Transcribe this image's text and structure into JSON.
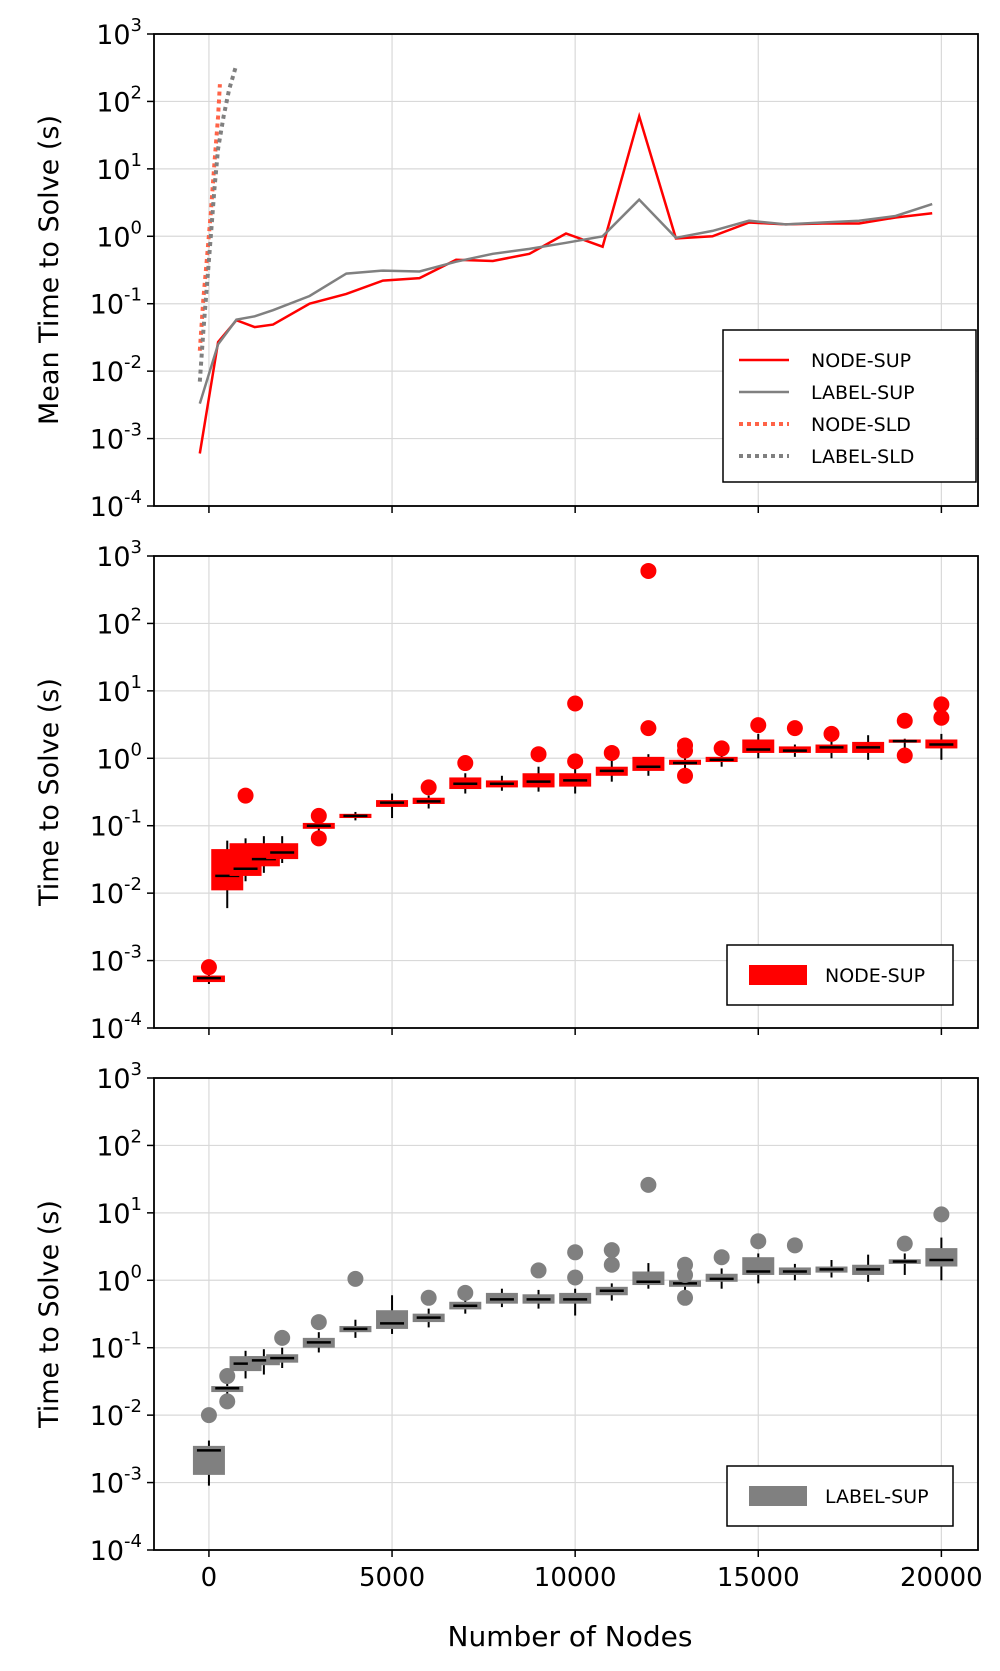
{
  "figure": {
    "xlabel": "Number of Nodes"
  },
  "colors": {
    "node": "#ff0000",
    "label": "#808080",
    "node_sld": "#ff6347",
    "label_sld": "#808080",
    "median": "#000000",
    "grid": "#d9d9d9"
  },
  "chart_data": [
    {
      "type": "line",
      "ylabel": "Mean Time to Solve (s)",
      "yscale": "log",
      "ylim": [
        0.0001,
        1000
      ],
      "xlim": [
        -1500,
        21000
      ],
      "yticks": [
        {
          "base": "10",
          "exp": "-4",
          "value": 0.0001
        },
        {
          "base": "10",
          "exp": "-3",
          "value": 0.001
        },
        {
          "base": "10",
          "exp": "-2",
          "value": 0.01
        },
        {
          "base": "10",
          "exp": "-1",
          "value": 0.1
        },
        {
          "base": "10",
          "exp": "0",
          "value": 1
        },
        {
          "base": "10",
          "exp": "1",
          "value": 10
        },
        {
          "base": "10",
          "exp": "2",
          "value": 100
        },
        {
          "base": "10",
          "exp": "3",
          "value": 1000
        }
      ],
      "xticks": [
        0,
        5000,
        10000,
        15000,
        20000
      ],
      "legend": {
        "position": "lower right",
        "entries": [
          "NODE-SUP",
          "LABEL-SUP",
          "NODE-SLD",
          "LABEL-SLD"
        ]
      },
      "series": [
        {
          "name": "NODE-SUP",
          "style": "solid",
          "x": [
            -250,
            250,
            750,
            1250,
            1750,
            2750,
            3750,
            4750,
            5750,
            6750,
            7750,
            8750,
            9750,
            10750,
            11750,
            12750,
            13750,
            14750,
            15750,
            16750,
            17750,
            18750,
            19750
          ],
          "y": [
            0.0006,
            0.027,
            0.057,
            0.045,
            0.049,
            0.1,
            0.14,
            0.22,
            0.24,
            0.45,
            0.43,
            0.55,
            1.1,
            0.7,
            60,
            0.93,
            1.0,
            1.6,
            1.5,
            1.55,
            1.55,
            1.9,
            2.2
          ]
        },
        {
          "name": "LABEL-SUP",
          "style": "solid",
          "x": [
            -250,
            250,
            750,
            1250,
            1750,
            2750,
            3750,
            4750,
            5750,
            6750,
            7750,
            8750,
            9750,
            10750,
            11750,
            12750,
            13750,
            14750,
            15750,
            16750,
            17750,
            18750,
            19750
          ],
          "y": [
            0.0033,
            0.025,
            0.058,
            0.065,
            0.08,
            0.13,
            0.28,
            0.31,
            0.3,
            0.42,
            0.55,
            0.65,
            0.8,
            1.0,
            3.5,
            0.95,
            1.2,
            1.7,
            1.5,
            1.6,
            1.7,
            2.0,
            3.0
          ]
        },
        {
          "name": "NODE-SLD",
          "style": "dotted",
          "x": [
            -250,
            -150,
            -50,
            50,
            150,
            250,
            300
          ],
          "y": [
            0.02,
            0.12,
            0.5,
            2.2,
            12,
            60,
            180
          ]
        },
        {
          "name": "LABEL-SLD",
          "style": "dotted",
          "x": [
            -250,
            -150,
            -50,
            50,
            150,
            250,
            400,
            550,
            750
          ],
          "y": [
            0.007,
            0.04,
            0.2,
            1.0,
            5,
            20,
            60,
            150,
            350
          ]
        }
      ]
    },
    {
      "type": "box",
      "ylabel": "Time to Solve (s)",
      "yscale": "log",
      "ylim": [
        0.0001,
        1000
      ],
      "xlim": [
        -1500,
        21000
      ],
      "yticks": [
        {
          "base": "10",
          "exp": "-4",
          "value": 0.0001
        },
        {
          "base": "10",
          "exp": "-3",
          "value": 0.001
        },
        {
          "base": "10",
          "exp": "-2",
          "value": 0.01
        },
        {
          "base": "10",
          "exp": "-1",
          "value": 0.1
        },
        {
          "base": "10",
          "exp": "0",
          "value": 1
        },
        {
          "base": "10",
          "exp": "1",
          "value": 10
        },
        {
          "base": "10",
          "exp": "2",
          "value": 100
        },
        {
          "base": "10",
          "exp": "3",
          "value": 1000
        }
      ],
      "xticks": [
        0,
        5000,
        10000,
        15000,
        20000
      ],
      "legend": {
        "position": "lower right",
        "entries": [
          "NODE-SUP"
        ]
      },
      "series": [
        {
          "name": "NODE-SUP",
          "boxes": [
            {
              "x": 0,
              "min": 0.00045,
              "q1": 0.00048,
              "median": 0.00055,
              "q3": 0.0006,
              "max": 0.00062,
              "outliers": [
                0.0008
              ]
            },
            {
              "x": 500,
              "min": 0.006,
              "q1": 0.011,
              "median": 0.018,
              "q3": 0.045,
              "max": 0.06,
              "outliers": []
            },
            {
              "x": 1000,
              "min": 0.015,
              "q1": 0.018,
              "median": 0.023,
              "q3": 0.055,
              "max": 0.065,
              "outliers": [
                0.28
              ]
            },
            {
              "x": 1500,
              "min": 0.02,
              "q1": 0.025,
              "median": 0.032,
              "q3": 0.055,
              "max": 0.07,
              "outliers": []
            },
            {
              "x": 2000,
              "min": 0.028,
              "q1": 0.032,
              "median": 0.04,
              "q3": 0.055,
              "max": 0.07,
              "outliers": []
            },
            {
              "x": 3000,
              "min": 0.075,
              "q1": 0.09,
              "median": 0.1,
              "q3": 0.11,
              "max": 0.12,
              "outliers": [
                0.14,
                0.065
              ]
            },
            {
              "x": 4000,
              "min": 0.12,
              "q1": 0.13,
              "median": 0.14,
              "q3": 0.15,
              "max": 0.16,
              "outliers": []
            },
            {
              "x": 5000,
              "min": 0.13,
              "q1": 0.19,
              "median": 0.22,
              "q3": 0.24,
              "max": 0.3,
              "outliers": []
            },
            {
              "x": 6000,
              "min": 0.18,
              "q1": 0.21,
              "median": 0.23,
              "q3": 0.26,
              "max": 0.28,
              "outliers": [
                0.37
              ]
            },
            {
              "x": 7000,
              "min": 0.3,
              "q1": 0.35,
              "median": 0.42,
              "q3": 0.52,
              "max": 0.6,
              "outliers": [
                0.85
              ]
            },
            {
              "x": 8000,
              "min": 0.33,
              "q1": 0.37,
              "median": 0.42,
              "q3": 0.47,
              "max": 0.55,
              "outliers": []
            },
            {
              "x": 9000,
              "min": 0.32,
              "q1": 0.37,
              "median": 0.45,
              "q3": 0.6,
              "max": 0.75,
              "outliers": [
                1.15
              ]
            },
            {
              "x": 10000,
              "min": 0.3,
              "q1": 0.38,
              "median": 0.47,
              "q3": 0.6,
              "max": 0.7,
              "outliers": [
                6.5,
                0.9
              ]
            },
            {
              "x": 11000,
              "min": 0.45,
              "q1": 0.55,
              "median": 0.65,
              "q3": 0.75,
              "max": 0.95,
              "outliers": [
                1.2
              ]
            },
            {
              "x": 12000,
              "min": 0.55,
              "q1": 0.65,
              "median": 0.75,
              "q3": 1.05,
              "max": 1.15,
              "outliers": [
                600,
                2.8
              ]
            },
            {
              "x": 13000,
              "min": 0.65,
              "q1": 0.8,
              "median": 0.85,
              "q3": 0.95,
              "max": 1.1,
              "outliers": [
                1.55,
                1.3,
                0.55
              ]
            },
            {
              "x": 14000,
              "min": 0.75,
              "q1": 0.88,
              "median": 0.95,
              "q3": 1.05,
              "max": 1.2,
              "outliers": [
                1.4
              ]
            },
            {
              "x": 15000,
              "min": 1.0,
              "q1": 1.2,
              "median": 1.35,
              "q3": 1.9,
              "max": 2.3,
              "outliers": [
                3.1
              ]
            },
            {
              "x": 16000,
              "min": 1.05,
              "q1": 1.2,
              "median": 1.3,
              "q3": 1.5,
              "max": 1.6,
              "outliers": [
                2.8
              ]
            },
            {
              "x": 17000,
              "min": 1.0,
              "q1": 1.2,
              "median": 1.45,
              "q3": 1.6,
              "max": 1.9,
              "outliers": [
                2.3
              ]
            },
            {
              "x": 18000,
              "min": 0.95,
              "q1": 1.2,
              "median": 1.45,
              "q3": 1.75,
              "max": 2.2,
              "outliers": []
            },
            {
              "x": 19000,
              "min": 1.2,
              "q1": 1.7,
              "median": 1.8,
              "q3": 1.9,
              "max": 1.95,
              "outliers": [
                3.6,
                1.1
              ]
            },
            {
              "x": 20000,
              "min": 0.95,
              "q1": 1.4,
              "median": 1.6,
              "q3": 1.9,
              "max": 2.3,
              "outliers": [
                6.3,
                4.0
              ]
            }
          ]
        }
      ]
    },
    {
      "type": "box",
      "ylabel": "Time to Solve (s)",
      "yscale": "log",
      "ylim": [
        0.0001,
        1000
      ],
      "xlim": [
        -1500,
        21000
      ],
      "yticks": [
        {
          "base": "10",
          "exp": "-4",
          "value": 0.0001
        },
        {
          "base": "10",
          "exp": "-3",
          "value": 0.001
        },
        {
          "base": "10",
          "exp": "-2",
          "value": 0.01
        },
        {
          "base": "10",
          "exp": "-1",
          "value": 0.1
        },
        {
          "base": "10",
          "exp": "0",
          "value": 1
        },
        {
          "base": "10",
          "exp": "1",
          "value": 10
        },
        {
          "base": "10",
          "exp": "2",
          "value": 100
        },
        {
          "base": "10",
          "exp": "3",
          "value": 1000
        }
      ],
      "xticks": [
        0,
        5000,
        10000,
        15000,
        20000
      ],
      "legend": {
        "position": "lower right",
        "entries": [
          "LABEL-SUP"
        ]
      },
      "series": [
        {
          "name": "LABEL-SUP",
          "boxes": [
            {
              "x": 0,
              "min": 0.0009,
              "q1": 0.0013,
              "median": 0.003,
              "q3": 0.0035,
              "max": 0.0042,
              "outliers": [
                0.01
              ]
            },
            {
              "x": 500,
              "min": 0.02,
              "q1": 0.022,
              "median": 0.025,
              "q3": 0.027,
              "max": 0.03,
              "outliers": [
                0.038,
                0.016
              ]
            },
            {
              "x": 1000,
              "min": 0.035,
              "q1": 0.045,
              "median": 0.058,
              "q3": 0.075,
              "max": 0.09,
              "outliers": []
            },
            {
              "x": 1500,
              "min": 0.04,
              "q1": 0.055,
              "median": 0.065,
              "q3": 0.075,
              "max": 0.095,
              "outliers": []
            },
            {
              "x": 2000,
              "min": 0.05,
              "q1": 0.06,
              "median": 0.07,
              "q3": 0.08,
              "max": 0.1,
              "outliers": [
                0.14
              ]
            },
            {
              "x": 3000,
              "min": 0.085,
              "q1": 0.1,
              "median": 0.12,
              "q3": 0.14,
              "max": 0.17,
              "outliers": [
                0.24
              ]
            },
            {
              "x": 4000,
              "min": 0.14,
              "q1": 0.17,
              "median": 0.19,
              "q3": 0.21,
              "max": 0.26,
              "outliers": [
                1.05
              ]
            },
            {
              "x": 5000,
              "min": 0.16,
              "q1": 0.19,
              "median": 0.23,
              "q3": 0.36,
              "max": 0.6,
              "outliers": []
            },
            {
              "x": 6000,
              "min": 0.2,
              "q1": 0.24,
              "median": 0.28,
              "q3": 0.32,
              "max": 0.38,
              "outliers": [
                0.55
              ]
            },
            {
              "x": 7000,
              "min": 0.32,
              "q1": 0.37,
              "median": 0.42,
              "q3": 0.48,
              "max": 0.55,
              "outliers": [
                0.65
              ]
            },
            {
              "x": 8000,
              "min": 0.4,
              "q1": 0.45,
              "median": 0.52,
              "q3": 0.65,
              "max": 0.75,
              "outliers": []
            },
            {
              "x": 9000,
              "min": 0.38,
              "q1": 0.45,
              "median": 0.52,
              "q3": 0.62,
              "max": 0.72,
              "outliers": [
                1.4
              ]
            },
            {
              "x": 10000,
              "min": 0.3,
              "q1": 0.45,
              "median": 0.52,
              "q3": 0.65,
              "max": 0.75,
              "outliers": [
                2.6,
                1.1
              ]
            },
            {
              "x": 11000,
              "min": 0.5,
              "q1": 0.6,
              "median": 0.7,
              "q3": 0.8,
              "max": 0.9,
              "outliers": [
                2.8,
                1.7
              ]
            },
            {
              "x": 12000,
              "min": 0.75,
              "q1": 0.85,
              "median": 0.95,
              "q3": 1.35,
              "max": 1.8,
              "outliers": [
                26
              ]
            },
            {
              "x": 13000,
              "min": 0.65,
              "q1": 0.8,
              "median": 0.9,
              "q3": 1.0,
              "max": 1.15,
              "outliers": [
                1.7,
                1.2,
                0.55
              ]
            },
            {
              "x": 14000,
              "min": 0.75,
              "q1": 0.95,
              "median": 1.05,
              "q3": 1.25,
              "max": 1.5,
              "outliers": [
                2.2
              ]
            },
            {
              "x": 15000,
              "min": 0.9,
              "q1": 1.2,
              "median": 1.35,
              "q3": 2.2,
              "max": 2.5,
              "outliers": [
                3.8
              ]
            },
            {
              "x": 16000,
              "min": 1.0,
              "q1": 1.2,
              "median": 1.35,
              "q3": 1.55,
              "max": 1.75,
              "outliers": [
                3.3
              ]
            },
            {
              "x": 17000,
              "min": 1.1,
              "q1": 1.3,
              "median": 1.45,
              "q3": 1.6,
              "max": 2.0,
              "outliers": []
            },
            {
              "x": 18000,
              "min": 0.95,
              "q1": 1.2,
              "median": 1.45,
              "q3": 1.7,
              "max": 2.4,
              "outliers": []
            },
            {
              "x": 19000,
              "min": 1.2,
              "q1": 1.75,
              "median": 1.9,
              "q3": 2.05,
              "max": 2.5,
              "outliers": [
                3.5
              ]
            },
            {
              "x": 20000,
              "min": 1.0,
              "q1": 1.6,
              "median": 2.0,
              "q3": 3.0,
              "max": 4.3,
              "outliers": [
                9.5
              ]
            }
          ]
        }
      ]
    }
  ]
}
